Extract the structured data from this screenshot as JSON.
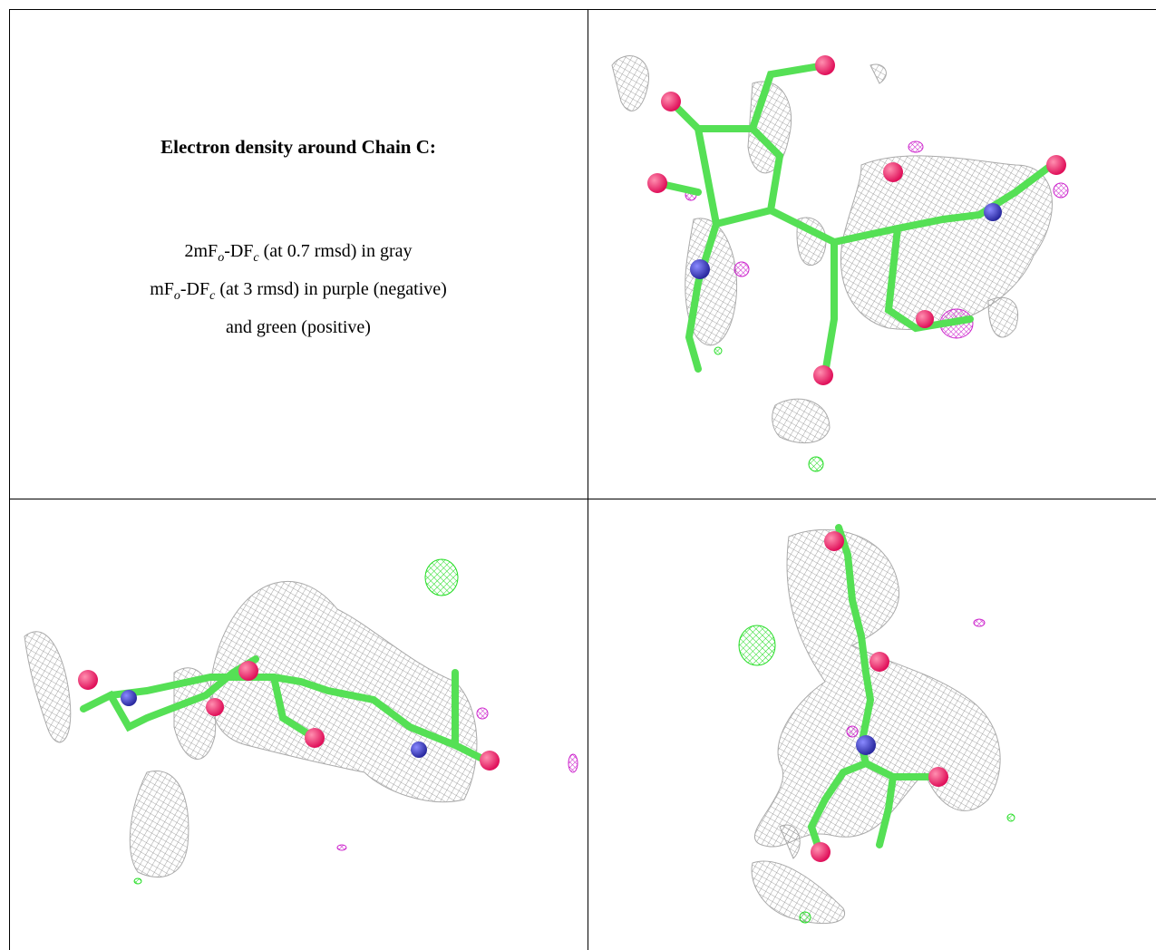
{
  "cell": {
    "title": "Electron density around Chain C:",
    "legend": [
      [
        "2mF",
        "o",
        "-DF",
        "c",
        " (at 0.7 rmsd) in gray"
      ],
      [
        "mF",
        "o",
        "-DF",
        "c",
        " (at 3 rmsd) in purple (negative)"
      ],
      [
        "and green (positive)"
      ]
    ]
  }
}
